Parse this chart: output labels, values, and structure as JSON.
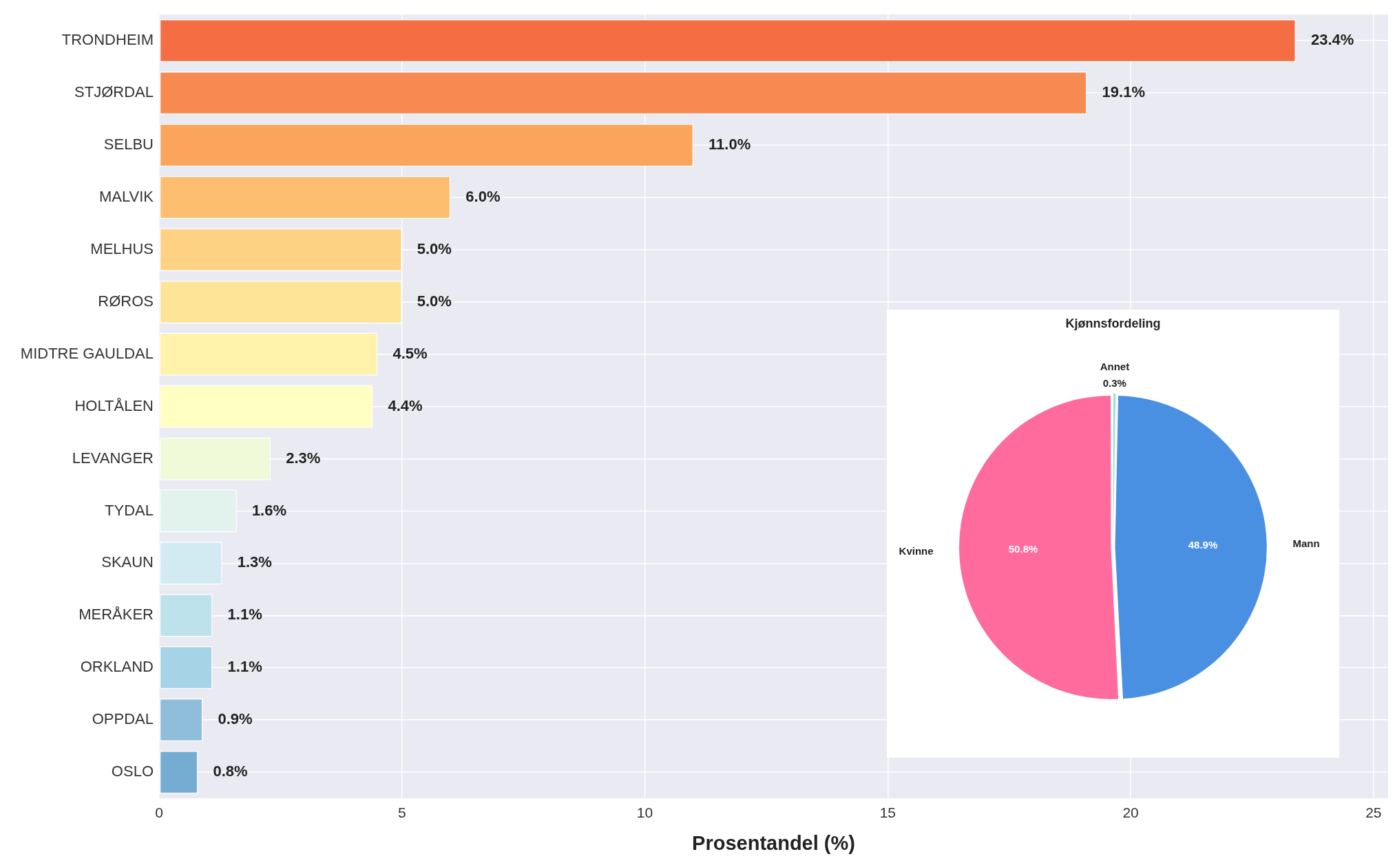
{
  "chart_data": [
    {
      "type": "bar",
      "orientation": "horizontal",
      "xlabel": "Prosentandel (%)",
      "categories": [
        "TRONDHEIM",
        "STJØRDAL",
        "SELBU",
        "MALVIK",
        "MELHUS",
        "RØROS",
        "MIDTRE GAULDAL",
        "HOLTÅLEN",
        "LEVANGER",
        "TYDAL",
        "SKAUN",
        "MERÅKER",
        "ORKLAND",
        "OPPDAL",
        "OSLO"
      ],
      "values": [
        23.4,
        19.1,
        11.0,
        6.0,
        5.0,
        5.0,
        4.5,
        4.4,
        2.3,
        1.6,
        1.3,
        1.1,
        1.1,
        0.9,
        0.8
      ],
      "value_labels": [
        "23.4%",
        "19.1%",
        "11.0%",
        "6.0%",
        "5.0%",
        "5.0%",
        "4.5%",
        "4.4%",
        "2.3%",
        "1.6%",
        "1.3%",
        "1.1%",
        "1.1%",
        "0.9%",
        "0.8%"
      ],
      "colors": [
        "#f46d43",
        "#f88950",
        "#fba45c",
        "#fdbe70",
        "#fdd283",
        "#fee496",
        "#fff2ab",
        "#feffc0",
        "#f0f9d8",
        "#e2f3ee",
        "#d2ebf3",
        "#bde2ec",
        "#a6d3e6",
        "#8ebedb",
        "#74add1"
      ],
      "xlim": [
        0,
        25.3
      ],
      "xticks": [
        0,
        5,
        10,
        15,
        20,
        25
      ],
      "grid": true
    },
    {
      "type": "pie",
      "title": "Kjønnsfordeling",
      "categories": [
        "Annet",
        "Mann",
        "Kvinne"
      ],
      "values": [
        0.3,
        48.9,
        50.8
      ],
      "value_labels": [
        "0.3%",
        "48.9%",
        "50.8%"
      ],
      "colors": [
        "#95e1d3",
        "#4a90e2",
        "#ff6b9d"
      ]
    }
  ]
}
